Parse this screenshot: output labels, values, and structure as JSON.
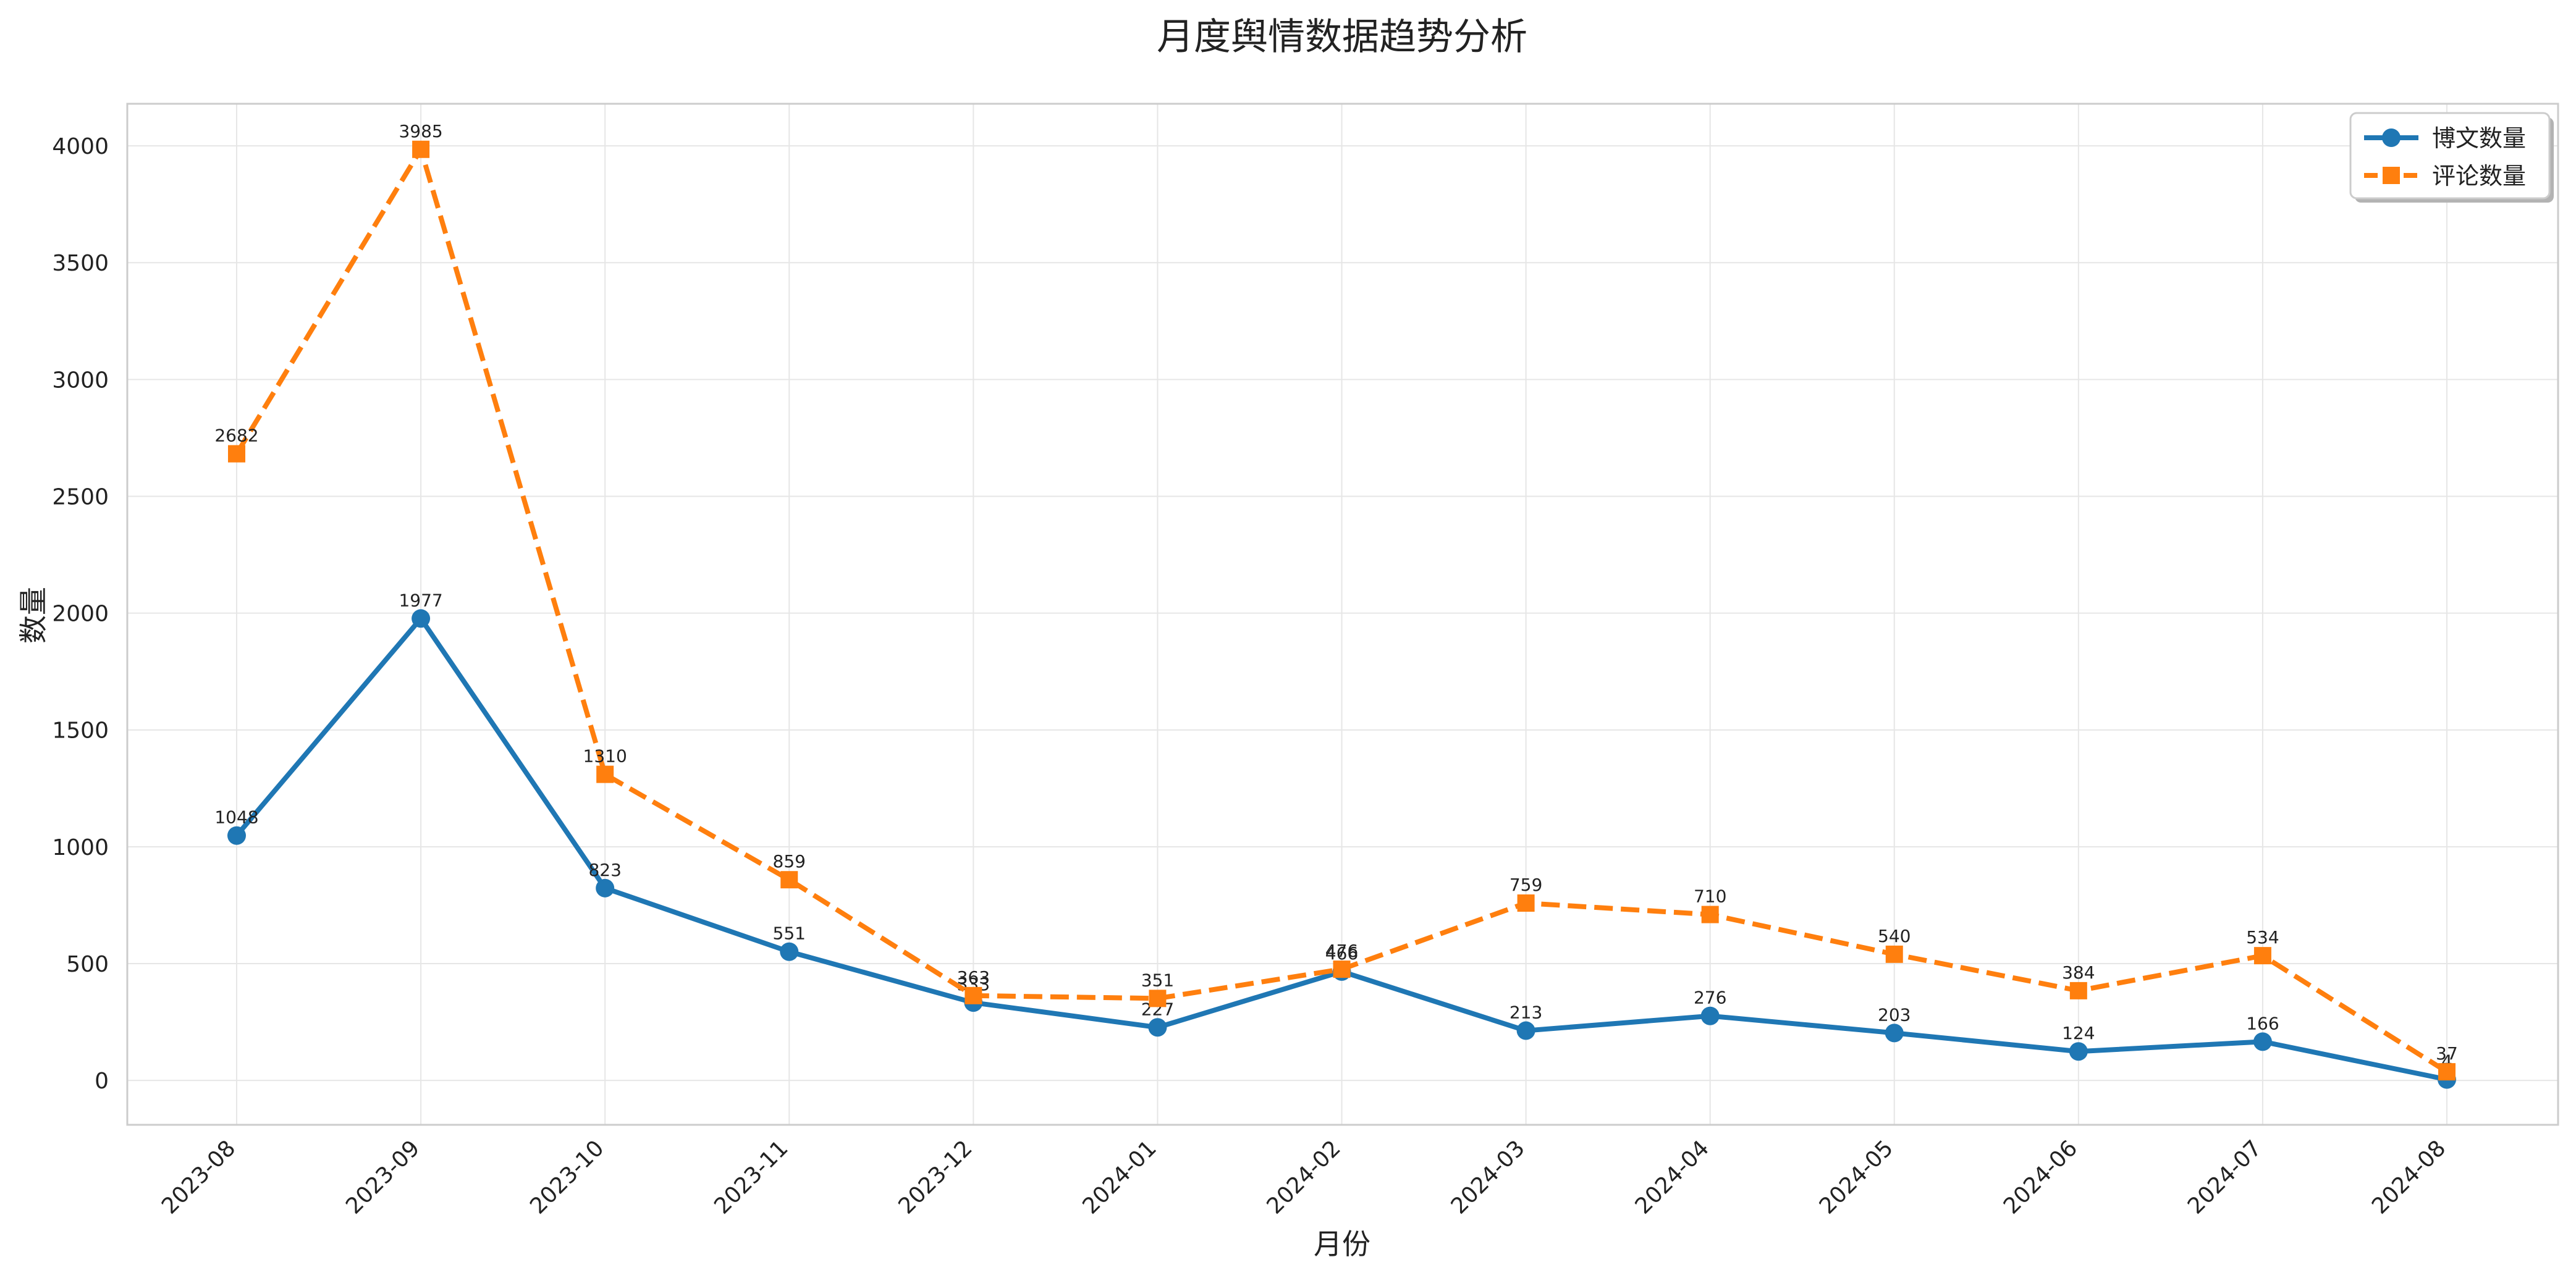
{
  "chart_data": {
    "type": "line",
    "title": "月度舆情数据趋势分析",
    "xlabel": "月份",
    "ylabel": "数量",
    "categories": [
      "2023-08",
      "2023-09",
      "2023-10",
      "2023-11",
      "2023-12",
      "2024-01",
      "2024-02",
      "2024-03",
      "2024-04",
      "2024-05",
      "2024-06",
      "2024-07",
      "2024-08"
    ],
    "ylim": [
      -190,
      4180
    ],
    "yticks": [
      0,
      500,
      1000,
      1500,
      2000,
      2500,
      3000,
      3500,
      4000
    ],
    "grid": true,
    "legend_position": "top-right",
    "series": [
      {
        "name": "博文数量",
        "values": [
          1048,
          1977,
          823,
          551,
          333,
          227,
          466,
          213,
          276,
          203,
          124,
          166,
          4
        ],
        "color": "#1f77b4",
        "marker": "circle",
        "line_style": "solid"
      },
      {
        "name": "评论数量",
        "values": [
          2682,
          3985,
          1310,
          859,
          363,
          351,
          476,
          759,
          710,
          540,
          384,
          534,
          37
        ],
        "color": "#ff7f0e",
        "marker": "square",
        "line_style": "dashed"
      }
    ]
  }
}
